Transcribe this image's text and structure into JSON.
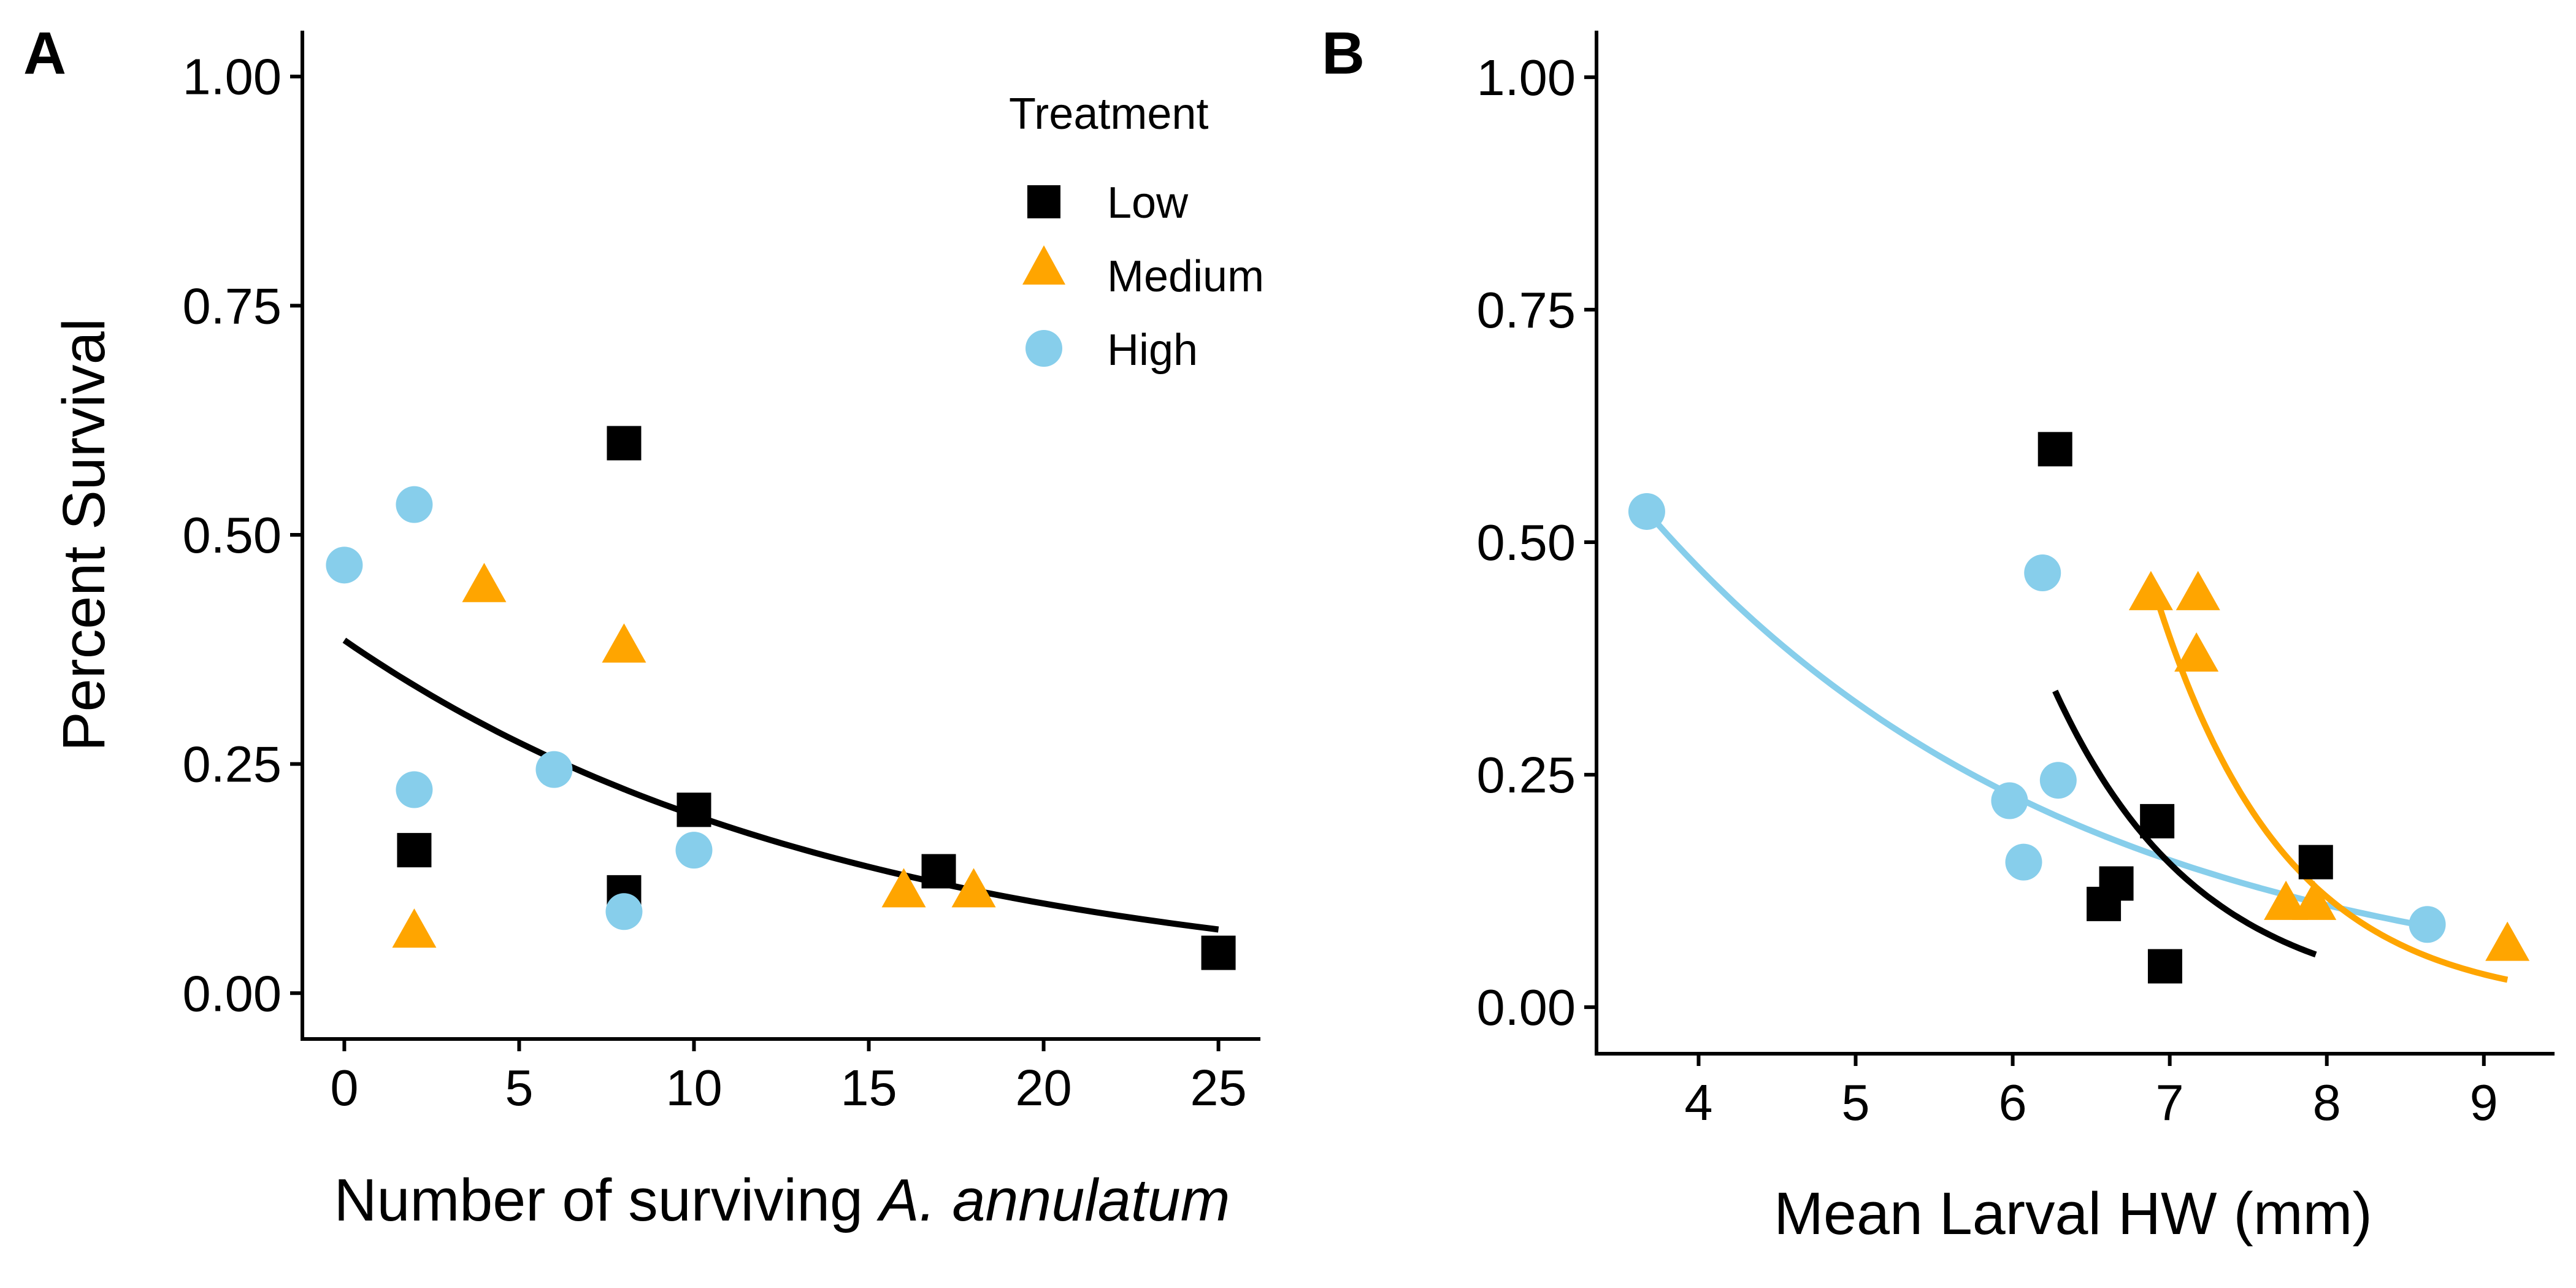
{
  "chart_data": [
    {
      "panel_label": "A",
      "type": "scatter",
      "xlabel_prefix": "Number of surviving ",
      "xlabel_italic": "A. annulatum",
      "ylabel": "Percent Survival",
      "xlim": [
        -1.2,
        26.2
      ],
      "ylim": [
        -0.05,
        1.05
      ],
      "xticks": [
        0,
        5,
        10,
        15,
        20,
        25
      ],
      "xtick_labels": [
        "0",
        "5",
        "10",
        "15",
        "20",
        "25"
      ],
      "yticks": [
        0,
        0.25,
        0.5,
        0.75,
        1.0
      ],
      "ytick_labels": [
        "0.00",
        "0.25",
        "0.50",
        "0.75",
        "1.00"
      ],
      "grid": false,
      "legend": {
        "title": "Treatment",
        "position": "top-right",
        "entries": [
          {
            "label": "Low",
            "shape": "square",
            "color": "#000000"
          },
          {
            "label": "Medium",
            "shape": "triangle",
            "color": "#FFA500"
          },
          {
            "label": "High",
            "shape": "circle",
            "color": "#87CEEB"
          }
        ]
      },
      "series": [
        {
          "name": "Low",
          "shape": "square",
          "color": "#000000",
          "x": [
            2,
            8,
            8,
            10,
            17,
            25
          ],
          "y": [
            0.156,
            0.6,
            0.11,
            0.2,
            0.133,
            0.044
          ]
        },
        {
          "name": "Medium",
          "shape": "triangle",
          "color": "#FFA500",
          "x": [
            2,
            4,
            8,
            16,
            18
          ],
          "y": [
            0.067,
            0.444,
            0.378,
            0.111,
            0.111
          ]
        },
        {
          "name": "High",
          "shape": "circle",
          "color": "#87CEEB",
          "x": [
            0,
            2,
            2,
            6,
            8,
            10
          ],
          "y": [
            0.467,
            0.533,
            0.222,
            0.244,
            0.089,
            0.156
          ]
        }
      ],
      "fits": [
        {
          "color": "#000000",
          "x_range": [
            0,
            25
          ],
          "model": "exp",
          "a": 0.385,
          "b": -0.0685
        }
      ]
    },
    {
      "panel_label": "B",
      "type": "scatter",
      "xlabel": "Mean Larval HW (mm)",
      "ylabel": "",
      "xlim": [
        3.35,
        9.45
      ],
      "ylim": [
        -0.05,
        1.05
      ],
      "xticks": [
        4,
        5,
        6,
        7,
        8,
        9
      ],
      "xtick_labels": [
        "4",
        "5",
        "6",
        "7",
        "8",
        "9"
      ],
      "yticks": [
        0,
        0.25,
        0.5,
        0.75,
        1.0
      ],
      "ytick_labels": [
        "0.00",
        "0.25",
        "0.50",
        "0.75",
        "1.00"
      ],
      "grid": false,
      "series": [
        {
          "name": "Low",
          "shape": "square",
          "color": "#000000",
          "x": [
            6.27,
            6.92,
            6.58,
            6.66,
            6.97,
            7.93
          ],
          "y": [
            0.6,
            0.2,
            0.111,
            0.133,
            0.044,
            0.156
          ]
        },
        {
          "name": "Medium",
          "shape": "triangle",
          "color": "#FFA500",
          "x": [
            6.88,
            7.18,
            7.17,
            7.74,
            7.92,
            9.15
          ],
          "y": [
            0.444,
            0.444,
            0.378,
            0.111,
            0.111,
            0.067
          ]
        },
        {
          "name": "High",
          "shape": "circle",
          "color": "#87CEEB",
          "x": [
            3.67,
            6.19,
            6.29,
            5.98,
            6.07,
            8.64
          ],
          "y": [
            0.533,
            0.467,
            0.244,
            0.222,
            0.156,
            0.089
          ]
        }
      ],
      "fits": [
        {
          "color": "#87CEEB",
          "x_range": [
            3.67,
            8.64
          ],
          "model": "exp",
          "a": 0.533,
          "b": -0.365,
          "x0": 3.67
        },
        {
          "color": "#000000",
          "x_range": [
            6.27,
            7.93
          ],
          "model": "exp",
          "a": 0.34,
          "b": -1.08,
          "x0": 6.27
        },
        {
          "color": "#FFA500",
          "x_range": [
            6.88,
            9.15
          ],
          "model": "exp",
          "a": 0.46,
          "b": -1.21,
          "x0": 6.88
        }
      ]
    }
  ]
}
